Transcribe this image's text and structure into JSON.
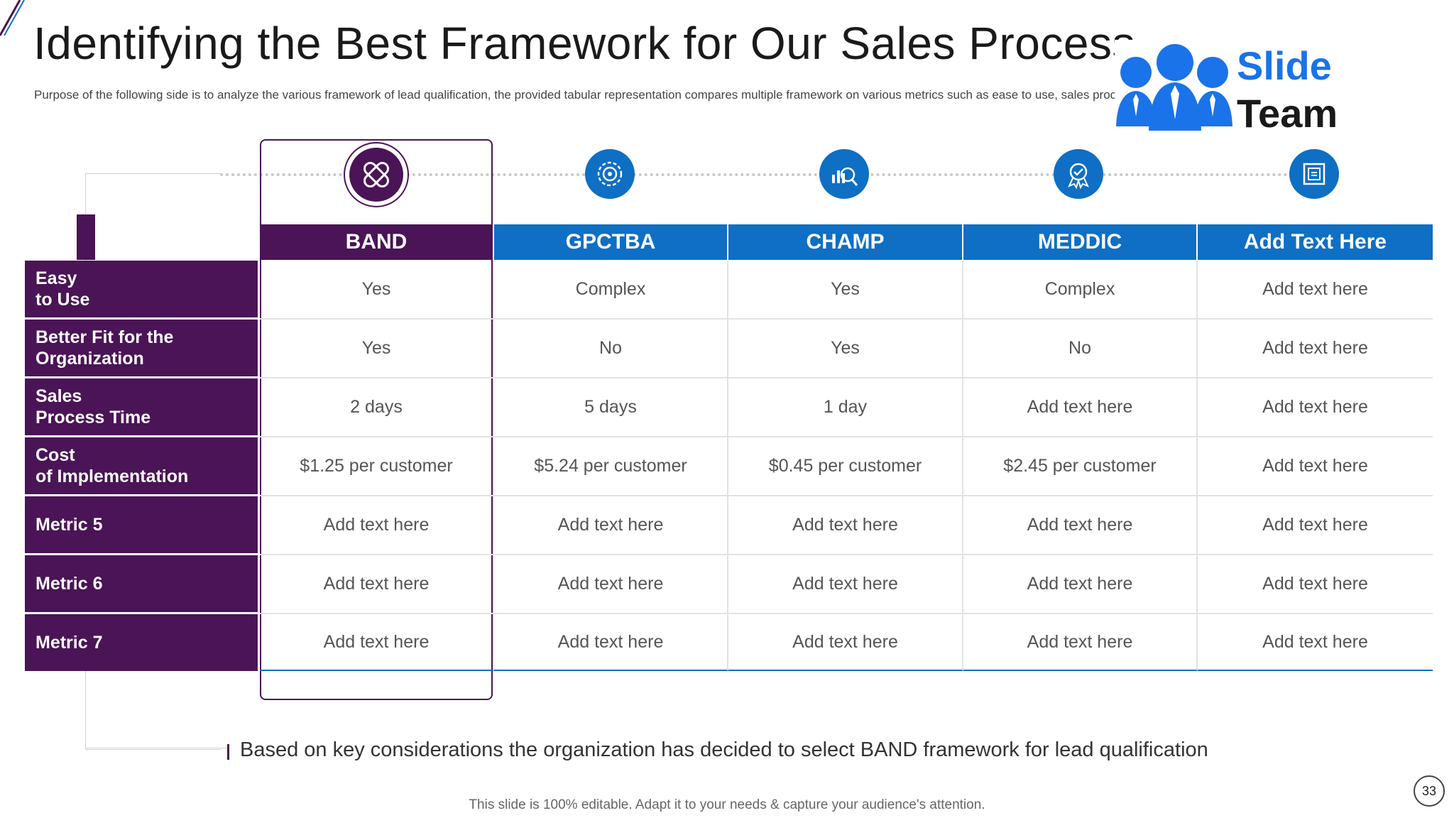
{
  "title": "Identifying the Best Framework for Our Sales Process",
  "subtitle": "Purpose of the following side is to analyze the various framework of lead qualification, the provided tabular representation compares multiple framework on various metrics such as ease to use, sales process time etc.",
  "logo": {
    "line1": "Slide",
    "line2": "Team",
    "brand_color": "#1a73e8"
  },
  "colors": {
    "purple": "#4a1456",
    "blue": "#0e6fc4"
  },
  "columns": [
    {
      "label": "BAND",
      "icon": "bandage-icon",
      "highlight": true
    },
    {
      "label": "GPCTBA",
      "icon": "gear-target-icon",
      "highlight": false
    },
    {
      "label": "CHAMP",
      "icon": "chart-magnifier-icon",
      "highlight": false
    },
    {
      "label": "MEDDIC",
      "icon": "award-badge-icon",
      "highlight": false
    },
    {
      "label": "Add Text Here",
      "icon": "document-frame-icon",
      "highlight": false
    }
  ],
  "rows": [
    {
      "label": "Easy\nto Use",
      "cells": [
        "Yes",
        "Complex",
        "Yes",
        "Complex",
        "Add text here"
      ]
    },
    {
      "label": "Better Fit for the\nOrganization",
      "cells": [
        "Yes",
        "No",
        "Yes",
        "No",
        "Add text here"
      ]
    },
    {
      "label": "Sales\nProcess Time",
      "cells": [
        "2 days",
        "5 days",
        "1 day",
        "Add text here",
        "Add text here"
      ]
    },
    {
      "label": "Cost\nof Implementation",
      "cells": [
        "$1.25 per customer",
        "$5.24 per customer",
        "$0.45 per customer",
        "$2.45 per customer",
        "Add text here"
      ]
    },
    {
      "label": "Metric 5",
      "cells": [
        "Add text here",
        "Add text here",
        "Add text here",
        "Add text here",
        "Add text here"
      ]
    },
    {
      "label": "Metric 6",
      "cells": [
        "Add text here",
        "Add text here",
        "Add text here",
        "Add text here",
        "Add text here"
      ]
    },
    {
      "label": "Metric 7",
      "cells": [
        "Add text here",
        "Add text here",
        "Add text here",
        "Add text here",
        "Add text here"
      ]
    }
  ],
  "conclusion": "Based on key considerations the organization has decided to select BAND framework for lead qualification",
  "footer": "This slide is 100% editable. Adapt it to your needs & capture your audience's attention.",
  "page_number": "33"
}
